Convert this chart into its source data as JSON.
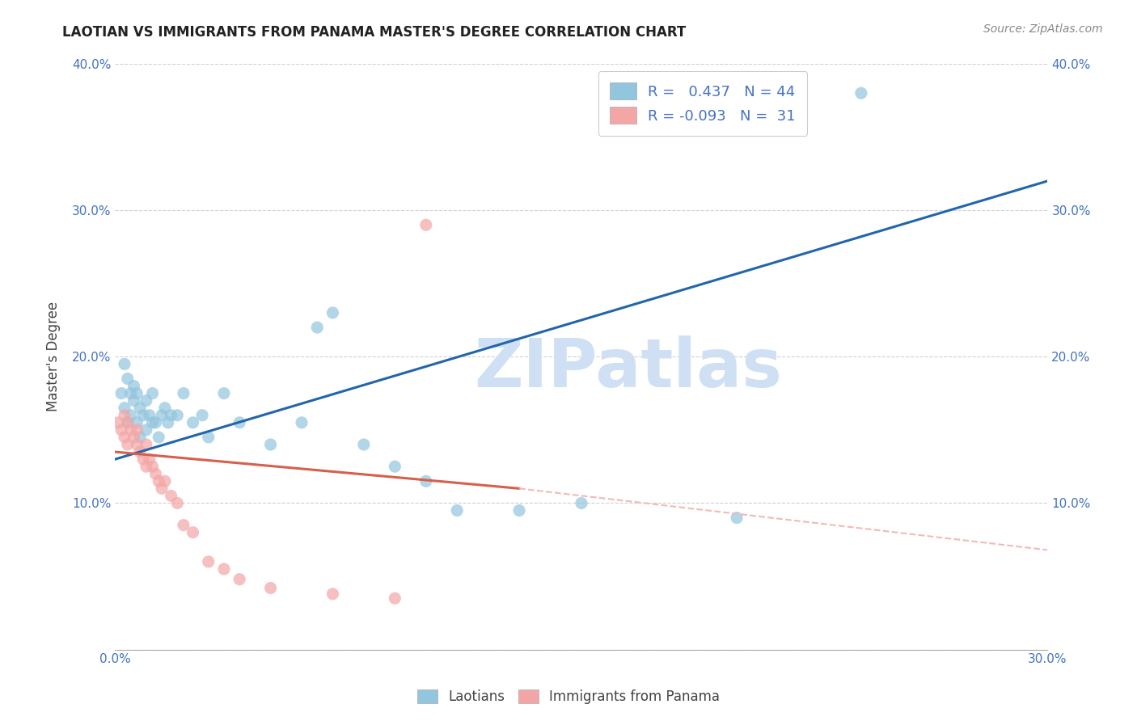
{
  "title": "LAOTIAN VS IMMIGRANTS FROM PANAMA MASTER'S DEGREE CORRELATION CHART",
  "source": "Source: ZipAtlas.com",
  "ylabel_label": "Master's Degree",
  "x_min": 0.0,
  "x_max": 0.3,
  "y_min": 0.0,
  "y_max": 0.4,
  "x_ticks": [
    0.0,
    0.05,
    0.1,
    0.15,
    0.2,
    0.25,
    0.3
  ],
  "y_ticks": [
    0.0,
    0.1,
    0.2,
    0.3,
    0.4
  ],
  "blue_R": 0.437,
  "blue_N": 44,
  "pink_R": -0.093,
  "pink_N": 31,
  "blue_color": "#92c5de",
  "pink_color": "#f4a6a6",
  "blue_line_color": "#2166ac",
  "pink_line_color": "#d6604d",
  "pink_dashed_color": "#f4b8b8",
  "watermark_color": "#d0e0f4",
  "legend_label_blue": "Laotians",
  "legend_label_pink": "Immigrants from Panama",
  "blue_scatter_x": [
    0.002,
    0.003,
    0.003,
    0.004,
    0.004,
    0.005,
    0.005,
    0.006,
    0.006,
    0.007,
    0.007,
    0.008,
    0.008,
    0.009,
    0.01,
    0.01,
    0.011,
    0.012,
    0.012,
    0.013,
    0.014,
    0.015,
    0.016,
    0.017,
    0.018,
    0.02,
    0.022,
    0.025,
    0.028,
    0.03,
    0.035,
    0.04,
    0.05,
    0.06,
    0.065,
    0.07,
    0.08,
    0.09,
    0.1,
    0.11,
    0.13,
    0.15,
    0.2,
    0.24
  ],
  "blue_scatter_y": [
    0.175,
    0.195,
    0.165,
    0.185,
    0.155,
    0.175,
    0.16,
    0.17,
    0.18,
    0.175,
    0.155,
    0.165,
    0.145,
    0.16,
    0.17,
    0.15,
    0.16,
    0.155,
    0.175,
    0.155,
    0.145,
    0.16,
    0.165,
    0.155,
    0.16,
    0.16,
    0.175,
    0.155,
    0.16,
    0.145,
    0.175,
    0.155,
    0.14,
    0.155,
    0.22,
    0.23,
    0.14,
    0.125,
    0.115,
    0.095,
    0.095,
    0.1,
    0.09,
    0.38
  ],
  "pink_scatter_x": [
    0.001,
    0.002,
    0.003,
    0.003,
    0.004,
    0.004,
    0.005,
    0.006,
    0.007,
    0.007,
    0.008,
    0.009,
    0.01,
    0.01,
    0.011,
    0.012,
    0.013,
    0.014,
    0.015,
    0.016,
    0.018,
    0.02,
    0.022,
    0.025,
    0.03,
    0.035,
    0.04,
    0.05,
    0.07,
    0.09,
    0.1
  ],
  "pink_scatter_y": [
    0.155,
    0.15,
    0.145,
    0.16,
    0.14,
    0.155,
    0.15,
    0.145,
    0.14,
    0.15,
    0.135,
    0.13,
    0.125,
    0.14,
    0.13,
    0.125,
    0.12,
    0.115,
    0.11,
    0.115,
    0.105,
    0.1,
    0.085,
    0.08,
    0.06,
    0.055,
    0.048,
    0.042,
    0.038,
    0.035,
    0.29
  ],
  "blue_line_x": [
    0.0,
    0.3
  ],
  "blue_line_y": [
    0.13,
    0.32
  ],
  "pink_solid_line_x": [
    0.0,
    0.13
  ],
  "pink_solid_line_y": [
    0.135,
    0.11
  ],
  "pink_dash_line_x": [
    0.13,
    0.3
  ],
  "pink_dash_line_y": [
    0.11,
    0.068
  ]
}
